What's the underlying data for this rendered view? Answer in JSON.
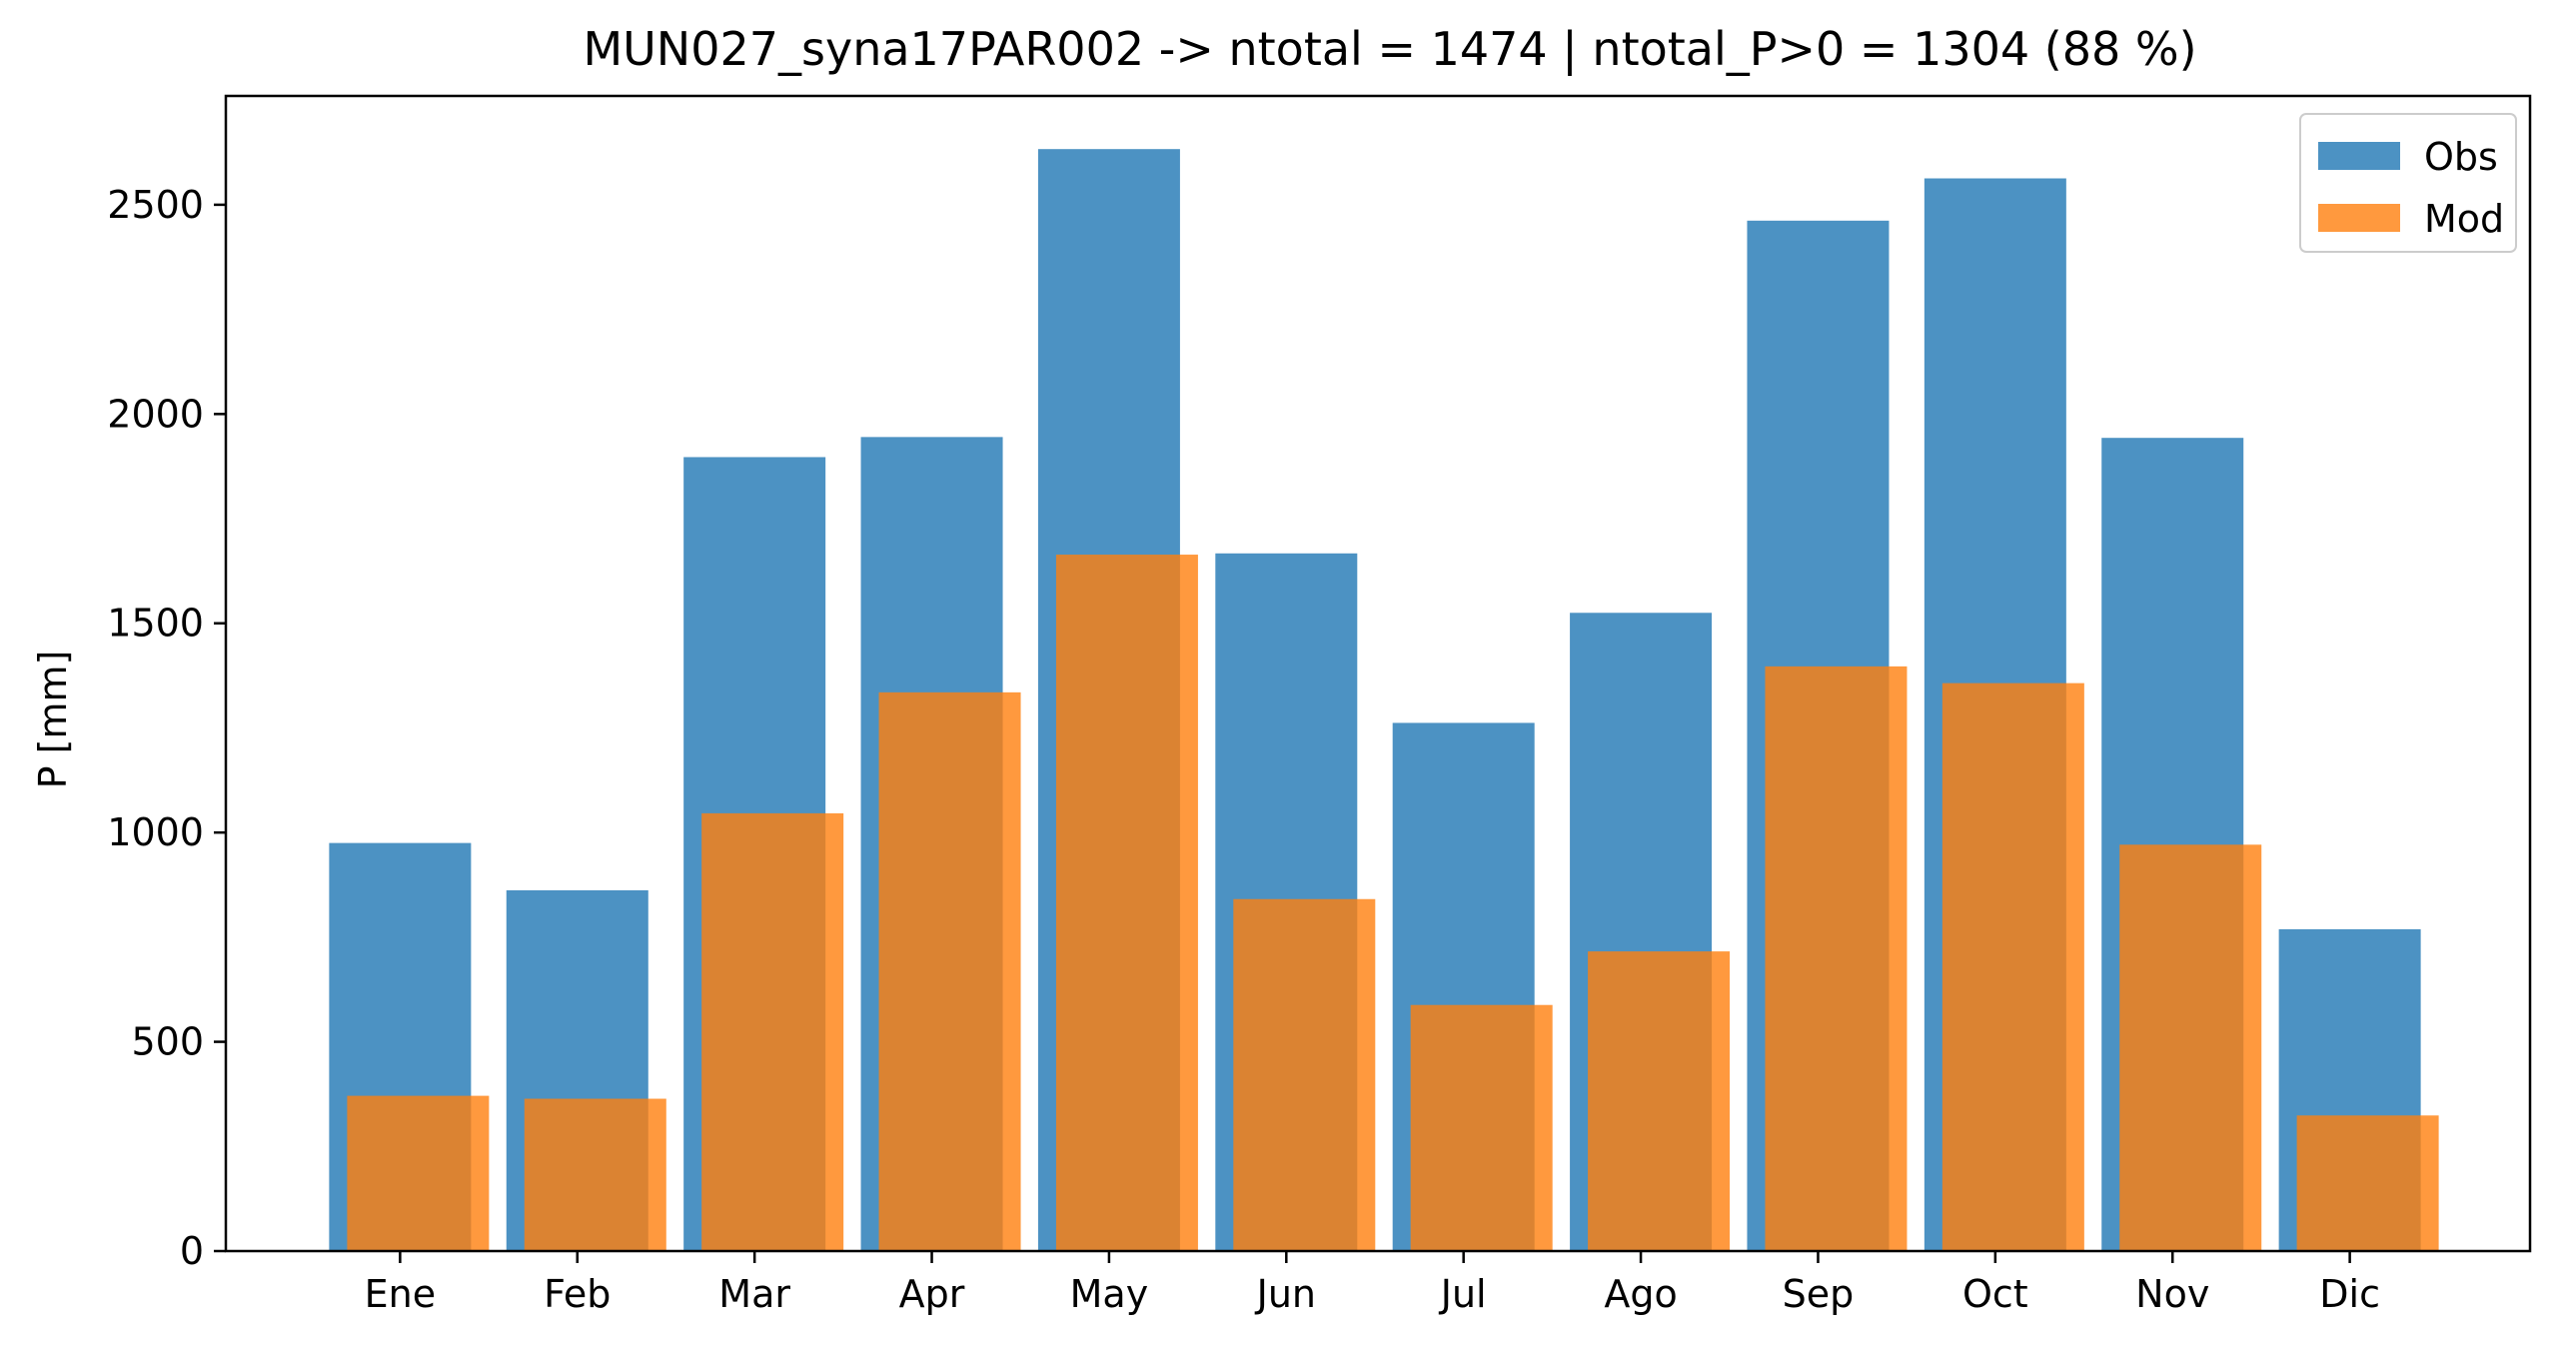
{
  "chart_data": {
    "type": "bar",
    "title": "MUN027_syna17PAR002 -> ntotal = 1474 | ntotal_P>0 = 1304 (88 %)",
    "xlabel": "",
    "ylabel": "P [mm]",
    "categories": [
      "Ene",
      "Feb",
      "Mar",
      "Apr",
      "May",
      "Jun",
      "Jul",
      "Ago",
      "Sep",
      "Oct",
      "Nov",
      "Dic"
    ],
    "series": [
      {
        "name": "Obs",
        "color": "#1f77b4",
        "values": [
          975,
          862,
          1897,
          1945,
          2633,
          1667,
          1262,
          1525,
          2462,
          2563,
          1943,
          769
        ]
      },
      {
        "name": "Mod",
        "color": "#ff7f0e",
        "values": [
          371,
          364,
          1046,
          1335,
          1664,
          841,
          588,
          716,
          1397,
          1357,
          971,
          324
        ]
      }
    ],
    "ylim": [
      0,
      2760
    ],
    "yticks": [
      0,
      500,
      1000,
      1500,
      2000,
      2500
    ],
    "legend": "top-right",
    "grid": false
  }
}
